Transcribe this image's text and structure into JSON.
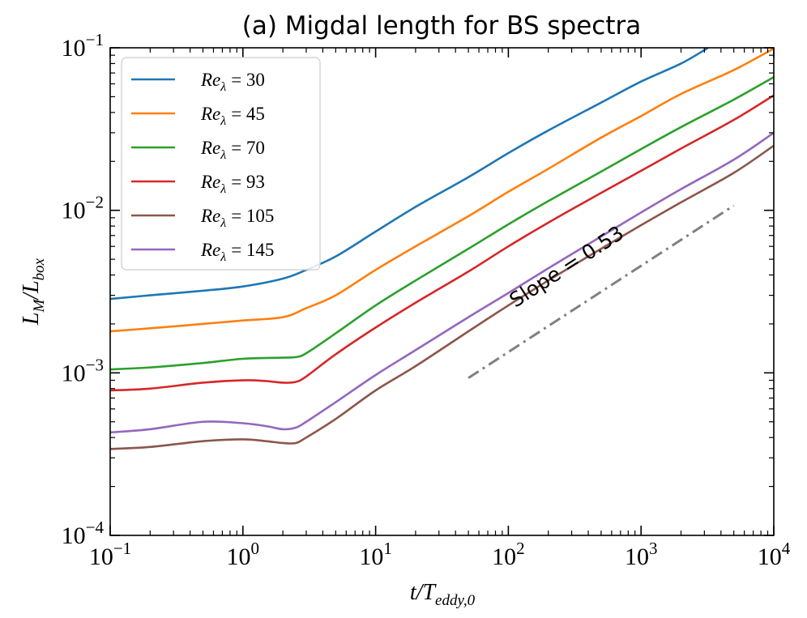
{
  "chart_data": {
    "type": "line",
    "title": "(a) Migdal length for BS spectra",
    "xlabel": {
      "base": "t/T",
      "sub": "eddy,0"
    },
    "ylabel": {
      "base": "L",
      "sub1": "M",
      "mid": "/L",
      "sub2": "box"
    },
    "xscale": "log",
    "yscale": "log",
    "xlim": [
      0.1,
      10000
    ],
    "ylim": [
      0.0001,
      0.1
    ],
    "x_ticks": [
      {
        "value": 0.1,
        "base": "10",
        "exp": "−1"
      },
      {
        "value": 1,
        "base": "10",
        "exp": "0"
      },
      {
        "value": 10,
        "base": "10",
        "exp": "1"
      },
      {
        "value": 100,
        "base": "10",
        "exp": "2"
      },
      {
        "value": 1000,
        "base": "10",
        "exp": "3"
      },
      {
        "value": 10000,
        "base": "10",
        "exp": "4"
      }
    ],
    "y_ticks": [
      {
        "value": 0.0001,
        "base": "10",
        "exp": "−4"
      },
      {
        "value": 0.001,
        "base": "10",
        "exp": "−3"
      },
      {
        "value": 0.01,
        "base": "10",
        "exp": "−2"
      },
      {
        "value": 0.1,
        "base": "10",
        "exp": "−1"
      }
    ],
    "legend_position": "top-left",
    "series": [
      {
        "name": "Reλ = 30",
        "label_var": "Re",
        "label_sub": "λ",
        "label_val": "= 30",
        "color": "#1f77b4",
        "x": [
          0.1,
          0.2,
          0.5,
          1,
          2,
          3,
          5,
          10,
          20,
          50,
          100,
          200,
          500,
          1000,
          2000,
          3200
        ],
        "y": [
          0.00285,
          0.003,
          0.0032,
          0.0034,
          0.0038,
          0.0043,
          0.0052,
          0.0074,
          0.0105,
          0.016,
          0.0225,
          0.031,
          0.046,
          0.062,
          0.08,
          0.1
        ]
      },
      {
        "name": "Reλ = 45",
        "label_var": "Re",
        "label_sub": "λ",
        "label_val": "= 45",
        "color": "#ff7f0e",
        "x": [
          0.1,
          0.2,
          0.5,
          1,
          2,
          3,
          5,
          10,
          20,
          50,
          100,
          200,
          500,
          1000,
          2000,
          5000,
          10000
        ],
        "y": [
          0.0018,
          0.00188,
          0.002,
          0.0021,
          0.0022,
          0.0025,
          0.003,
          0.0043,
          0.006,
          0.0092,
          0.013,
          0.018,
          0.028,
          0.038,
          0.052,
          0.073,
          0.099
        ]
      },
      {
        "name": "Reλ = 70",
        "label_var": "Re",
        "label_sub": "λ",
        "label_val": "= 70",
        "color": "#2ca02c",
        "x": [
          0.1,
          0.2,
          0.5,
          1,
          2,
          2.5,
          3,
          5,
          10,
          20,
          50,
          100,
          200,
          500,
          1000,
          2000,
          5000,
          10000
        ],
        "y": [
          0.00105,
          0.00108,
          0.00115,
          0.00122,
          0.00124,
          0.00125,
          0.00132,
          0.00175,
          0.0026,
          0.0037,
          0.0058,
          0.0082,
          0.0114,
          0.0173,
          0.0238,
          0.0325,
          0.048,
          0.066
        ]
      },
      {
        "name": "Reλ = 93",
        "label_var": "Re",
        "label_sub": "λ",
        "label_val": "= 93",
        "color": "#d62728",
        "x": [
          0.1,
          0.2,
          0.5,
          1,
          1.5,
          2,
          2.5,
          3,
          5,
          10,
          20,
          50,
          100,
          200,
          500,
          1000,
          2000,
          5000,
          10000
        ],
        "y": [
          0.00078,
          0.0008,
          0.00087,
          0.0009,
          0.00089,
          0.00087,
          0.00088,
          0.00095,
          0.0013,
          0.0019,
          0.0027,
          0.0042,
          0.006,
          0.0084,
          0.0128,
          0.0175,
          0.024,
          0.036,
          0.051
        ]
      },
      {
        "name": "Reλ = 105",
        "label_var": "Re",
        "label_sub": "λ",
        "label_val": "= 105",
        "color": "#8c564b",
        "x": [
          0.1,
          0.2,
          0.5,
          1,
          1.5,
          2,
          2.5,
          3,
          5,
          10,
          20,
          50,
          100,
          200,
          500,
          1000,
          2000,
          5000,
          10000
        ],
        "y": [
          0.00034,
          0.00035,
          0.00038,
          0.00039,
          0.00038,
          0.00037,
          0.00037,
          0.0004,
          0.00052,
          0.00078,
          0.0011,
          0.0018,
          0.0026,
          0.0037,
          0.0058,
          0.0081,
          0.0112,
          0.017,
          0.025
        ]
      },
      {
        "name": "Reλ = 145",
        "label_var": "Re",
        "label_sub": "λ",
        "label_val": "= 145",
        "color": "#9467bd",
        "x": [
          0.1,
          0.2,
          0.5,
          1,
          1.5,
          2,
          2.5,
          3,
          5,
          10,
          20,
          50,
          100,
          200,
          500,
          1000,
          2000,
          5000,
          10000
        ],
        "y": [
          0.00043,
          0.00045,
          0.0005,
          0.00049,
          0.00047,
          0.00045,
          0.00046,
          0.0005,
          0.00066,
          0.00097,
          0.00138,
          0.0022,
          0.0031,
          0.0044,
          0.0069,
          0.0097,
          0.0135,
          0.0205,
          0.03
        ]
      }
    ],
    "slope_line": {
      "label": "Slope = 0.53",
      "x": [
        50,
        5000
      ],
      "y": [
        0.00093,
        0.0107
      ],
      "color": "#808080"
    }
  }
}
